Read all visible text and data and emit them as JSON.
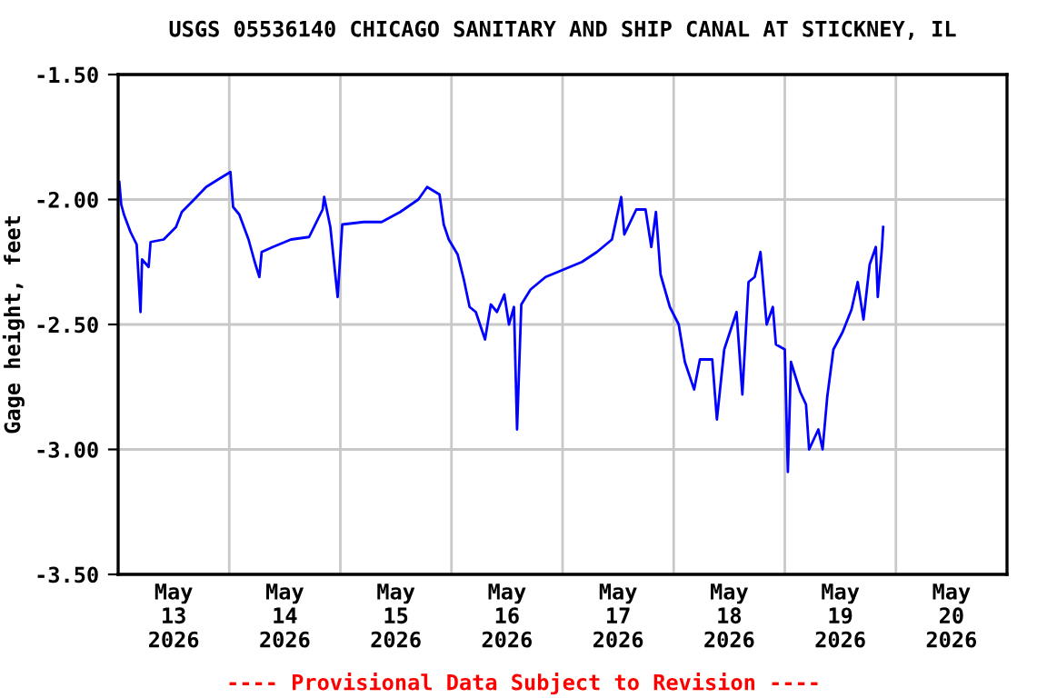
{
  "chart_data": {
    "type": "line",
    "title": "USGS 05536140 CHICAGO SANITARY AND SHIP CANAL AT STICKNEY, IL",
    "ylabel": "Gage height, feet",
    "annotations": [
      "---- Provisional Data Subject to Revision ----"
    ],
    "series": [
      {
        "color": "#0000ff",
        "x": [
          "2026-05-13T00:15",
          "2026-05-13T00:40",
          "2026-05-13T01:15",
          "2026-05-13T02:40",
          "2026-05-13T04:00",
          "2026-05-13T04:50",
          "2026-05-13T05:10",
          "2026-05-13T06:35",
          "2026-05-13T07:00",
          "2026-05-13T09:50",
          "2026-05-13T12:30",
          "2026-05-13T13:45",
          "2026-05-13T16:25",
          "2026-05-13T19:00",
          "2026-05-13T21:35",
          "2026-05-14T00:15",
          "2026-05-14T00:50",
          "2026-05-14T02:10",
          "2026-05-14T04:10",
          "2026-05-14T05:30",
          "2026-05-14T06:30",
          "2026-05-14T07:00",
          "2026-05-14T09:25",
          "2026-05-14T13:20",
          "2026-05-14T17:15",
          "2026-05-14T20:10",
          "2026-05-14T20:30",
          "2026-05-14T21:50",
          "2026-05-14T23:25",
          "2026-05-15T00:25",
          "2026-05-15T05:00",
          "2026-05-15T08:55",
          "2026-05-15T12:55",
          "2026-05-15T16:50",
          "2026-05-15T18:45",
          "2026-05-15T21:25",
          "2026-05-15T22:20",
          "2026-05-15T23:25",
          "2026-05-16T01:20",
          "2026-05-16T02:40",
          "2026-05-16T03:55",
          "2026-05-16T05:15",
          "2026-05-16T07:15",
          "2026-05-16T08:30",
          "2026-05-16T09:50",
          "2026-05-16T11:25",
          "2026-05-16T12:25",
          "2026-05-16T13:30",
          "2026-05-16T14:10",
          "2026-05-16T15:05",
          "2026-05-16T17:05",
          "2026-05-16T20:20",
          "2026-05-17T00:15",
          "2026-05-17T04:10",
          "2026-05-17T07:25",
          "2026-05-17T10:40",
          "2026-05-17T12:40",
          "2026-05-17T13:20",
          "2026-05-17T15:55",
          "2026-05-17T17:55",
          "2026-05-17T19:10",
          "2026-05-17T20:10",
          "2026-05-17T21:10",
          "2026-05-17T23:10",
          "2026-05-18T01:05",
          "2026-05-18T02:25",
          "2026-05-18T04:25",
          "2026-05-18T05:40",
          "2026-05-18T08:20",
          "2026-05-18T09:20",
          "2026-05-18T10:55",
          "2026-05-18T13:35",
          "2026-05-18T14:50",
          "2026-05-18T16:10",
          "2026-05-18T17:30",
          "2026-05-18T18:45",
          "2026-05-18T20:05",
          "2026-05-18T21:25",
          "2026-05-18T22:05",
          "2026-05-19T00:00",
          "2026-05-19T00:40",
          "2026-05-19T01:20",
          "2026-05-19T03:20",
          "2026-05-19T04:35",
          "2026-05-19T05:15",
          "2026-05-19T07:15",
          "2026-05-19T08:10",
          "2026-05-19T09:10",
          "2026-05-19T10:30",
          "2026-05-19T12:30",
          "2026-05-19T14:25",
          "2026-05-19T15:45",
          "2026-05-19T17:00",
          "2026-05-19T18:20",
          "2026-05-19T19:40",
          "2026-05-19T20:05",
          "2026-05-19T21:00",
          "2026-05-19T21:15"
        ],
        "values": [
          -1.93,
          -2.02,
          -2.06,
          -2.13,
          -2.18,
          -2.45,
          -2.24,
          -2.27,
          -2.17,
          -2.16,
          -2.11,
          -2.05,
          -2.0,
          -1.95,
          -1.92,
          -1.89,
          -2.03,
          -2.06,
          -2.16,
          -2.25,
          -2.31,
          -2.21,
          -2.19,
          -2.16,
          -2.15,
          -2.04,
          -1.99,
          -2.11,
          -2.39,
          -2.1,
          -2.09,
          -2.09,
          -2.05,
          -2.0,
          -1.95,
          -1.98,
          -2.1,
          -2.16,
          -2.22,
          -2.32,
          -2.43,
          -2.45,
          -2.56,
          -2.42,
          -2.45,
          -2.38,
          -2.5,
          -2.43,
          -2.92,
          -2.42,
          -2.36,
          -2.31,
          -2.28,
          -2.25,
          -2.21,
          -2.16,
          -1.99,
          -2.14,
          -2.04,
          -2.04,
          -2.19,
          -2.05,
          -2.3,
          -2.43,
          -2.5,
          -2.65,
          -2.76,
          -2.64,
          -2.64,
          -2.88,
          -2.6,
          -2.45,
          -2.78,
          -2.33,
          -2.31,
          -2.21,
          -2.5,
          -2.43,
          -2.58,
          -2.6,
          -3.09,
          -2.65,
          -2.77,
          -2.82,
          -3.0,
          -2.92,
          -3.0,
          -2.79,
          -2.6,
          -2.53,
          -2.44,
          -2.33,
          -2.48,
          -2.26,
          -2.19,
          -2.39,
          -2.19,
          -2.11
        ]
      }
    ],
    "xlim": [
      "2026-05-13T00:00",
      "2026-05-21T00:00"
    ],
    "xticks": [
      {
        "value": "2026-05-14T00:00",
        "label": null
      },
      {
        "value": "2026-05-15T00:00",
        "label": null
      },
      {
        "value": "2026-05-16T00:00",
        "label": null
      },
      {
        "value": "2026-05-17T00:00",
        "label": null
      },
      {
        "value": "2026-05-18T00:00",
        "label": null
      },
      {
        "value": "2026-05-19T00:00",
        "label": null
      },
      {
        "value": "2026-05-20T00:00",
        "label": null
      },
      {
        "value": "2026-05-13T12:00",
        "label": "May\n13\n2026"
      },
      {
        "value": "2026-05-14T12:00",
        "label": "May\n14\n2026"
      },
      {
        "value": "2026-05-15T12:00",
        "label": "May\n15\n2026"
      },
      {
        "value": "2026-05-16T12:00",
        "label": "May\n16\n2026"
      },
      {
        "value": "2026-05-17T12:00",
        "label": "May\n17\n2026"
      },
      {
        "value": "2026-05-18T12:00",
        "label": "May\n18\n2026"
      },
      {
        "value": "2026-05-19T12:00",
        "label": "May\n19\n2026"
      },
      {
        "value": "2026-05-20T12:00",
        "label": "May\n20\n2026"
      }
    ],
    "ylim": [
      -3.5,
      -1.5
    ],
    "yticks": [
      {
        "value": -1.5,
        "label": "-1.50"
      },
      {
        "value": -2.0,
        "label": "-2.00"
      },
      {
        "value": -2.5,
        "label": "-2.50"
      },
      {
        "value": -3.0,
        "label": "-3.00"
      },
      {
        "value": -3.5,
        "label": "-3.50"
      }
    ],
    "grid": true,
    "legend": false,
    "marker": "none",
    "line_style": "solid"
  }
}
